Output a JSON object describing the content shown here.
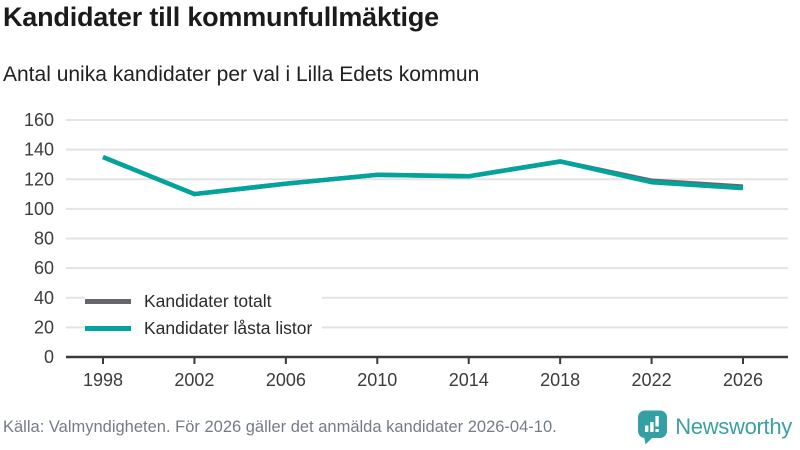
{
  "header": {
    "title": "Kandidater till kommunfullmäktige",
    "subtitle": "Antal unika kandidater per val i Lilla Edets kommun"
  },
  "chart_data": {
    "type": "line",
    "x": [
      1998,
      2002,
      2006,
      2010,
      2014,
      2018,
      2022,
      2026
    ],
    "series": [
      {
        "name": "Kandidater totalt",
        "color": "#66666d",
        "values": [
          135,
          110,
          117,
          123,
          122,
          132,
          119,
          115
        ]
      },
      {
        "name": "Kandidater låsta listor",
        "color": "#00a49d",
        "values": [
          135,
          110,
          117,
          123,
          122,
          132,
          118,
          114
        ]
      }
    ],
    "ylim": [
      0,
      160
    ],
    "y_ticks": [
      0,
      20,
      40,
      60,
      80,
      100,
      120,
      140,
      160
    ],
    "grid": "horizontal",
    "legend_position": "inside-lower-left"
  },
  "footer": {
    "source": "Källa: Valmyndigheten. För 2026 gäller det anmälda kandidater 2026-04-10.",
    "brand": "Newsworthy"
  },
  "colors": {
    "accent_teal": "#00a49d",
    "series_gray": "#66666d",
    "brand_teal": "#35a0a3",
    "axis": "#3a3a3a",
    "grid": "#e3e3e3",
    "tick_label": "#3c3c3c"
  }
}
